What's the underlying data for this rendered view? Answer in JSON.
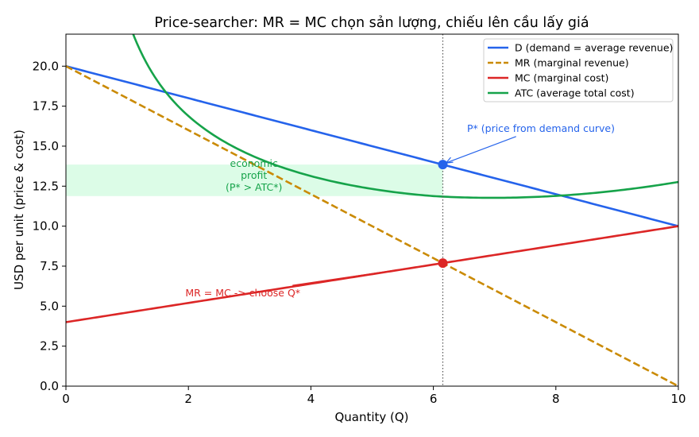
{
  "chart_data": {
    "type": "line",
    "title": "Price-searcher: MR = MC chọn sản lượng, chiếu lên cầu lấy giá",
    "xlabel": "Quantity (Q)",
    "ylabel": "USD per unit (price & cost)",
    "xlim": [
      0,
      10
    ],
    "ylim": [
      0,
      22
    ],
    "xticks": [
      0,
      2,
      4,
      6,
      8,
      10
    ],
    "xtick_labels": [
      "0",
      "2",
      "4",
      "6",
      "8",
      "10"
    ],
    "yticks": [
      0,
      2.5,
      5,
      7.5,
      10,
      12.5,
      15,
      17.5,
      20
    ],
    "ytick_labels": [
      "0.0",
      "2.5",
      "5.0",
      "7.5",
      "10.0",
      "12.5",
      "15.0",
      "17.5",
      "20.0"
    ],
    "grid": false,
    "legend_position": "top-right",
    "series": [
      {
        "name": "D (demand = average revenue)",
        "color": "#2563eb",
        "style": "solid",
        "formula": "20 - 1.0*Q",
        "domain": [
          0,
          10
        ]
      },
      {
        "name": "MR (marginal revenue)",
        "color": "#ca8a04",
        "style": "dashed",
        "formula": "20 - 2.0*Q",
        "domain": [
          0,
          10
        ]
      },
      {
        "name": "MC (marginal cost)",
        "color": "#dc2626",
        "style": "solid",
        "formula": "4 + 0.6*Q",
        "domain": [
          0,
          10
        ]
      },
      {
        "name": "ATC (average total cost)",
        "color": "#16a34a",
        "style": "solid",
        "formula": "0.06*(Q-6)^2 + 11.9 + 30*(1/Q - 1/6) approx",
        "domain": [
          0.7,
          10
        ]
      }
    ],
    "q_star": 6.154,
    "points": [
      {
        "name": "P*",
        "x": 6.154,
        "y": 13.85,
        "color": "#2563eb"
      },
      {
        "name": "MR=MC",
        "x": 6.154,
        "y": 7.69,
        "color": "#dc2626"
      }
    ],
    "profit_region": {
      "x0": 0,
      "x1": 6.154,
      "y0": 11.88,
      "y1": 13.85,
      "color": "#dcfce7"
    },
    "annotations": [
      {
        "text": "P* (price from demand curve)",
        "x": 6.55,
        "y": 15.9,
        "color": "#2563eb",
        "arrow_to": [
          6.154,
          13.85
        ]
      },
      {
        "lines": [
          "economic",
          "profit",
          "(P* > ATC*)"
        ],
        "x": 3.07,
        "y": 13.0,
        "color": "#16a34a"
      },
      {
        "text": "MR = MC -> choose Q*",
        "x": 1.95,
        "y": 5.8,
        "color": "#dc2626",
        "arrow_to": [
          6.154,
          7.69
        ],
        "arrow_from": [
          3.7,
          6.3
        ]
      }
    ]
  }
}
